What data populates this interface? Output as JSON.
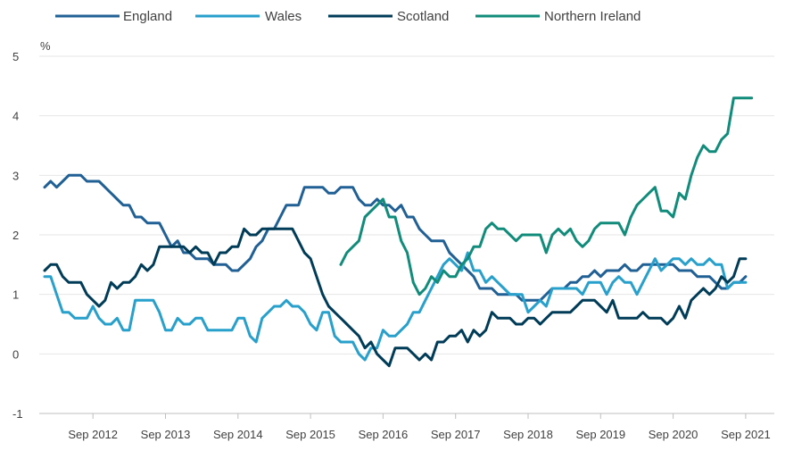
{
  "chart_data": {
    "type": "line",
    "title": "",
    "xlabel": "",
    "ylabel": "%",
    "ylim": [
      -1,
      5
    ],
    "yticks": [
      -1,
      0,
      1,
      2,
      3,
      4,
      5
    ],
    "x_start": "Jan 2012",
    "x_end": "Dec 2021",
    "x_ticks": [
      {
        "label": "Sep 2012",
        "month_index": 8
      },
      {
        "label": "Sep 2013",
        "month_index": 20
      },
      {
        "label": "Sep 2014",
        "month_index": 32
      },
      {
        "label": "Sep 2015",
        "month_index": 44
      },
      {
        "label": "Sep 2016",
        "month_index": 56
      },
      {
        "label": "Sep 2017",
        "month_index": 68
      },
      {
        "label": "Sep 2018",
        "month_index": 80
      },
      {
        "label": "Sep 2019",
        "month_index": 92
      },
      {
        "label": "Sep 2020",
        "month_index": 104
      },
      {
        "label": "Sep 2021",
        "month_index": 116
      }
    ],
    "legend_position": "top",
    "series": [
      {
        "name": "England",
        "color": "#206095",
        "start_month_index": 0,
        "values": [
          2.8,
          2.9,
          2.8,
          2.9,
          3.0,
          3.0,
          3.0,
          2.9,
          2.9,
          2.9,
          2.8,
          2.7,
          2.6,
          2.5,
          2.5,
          2.3,
          2.3,
          2.2,
          2.2,
          2.2,
          2.0,
          1.8,
          1.9,
          1.7,
          1.7,
          1.6,
          1.6,
          1.6,
          1.5,
          1.5,
          1.5,
          1.4,
          1.4,
          1.5,
          1.6,
          1.8,
          1.9,
          2.1,
          2.1,
          2.3,
          2.5,
          2.5,
          2.5,
          2.8,
          2.8,
          2.8,
          2.8,
          2.7,
          2.7,
          2.8,
          2.8,
          2.8,
          2.6,
          2.5,
          2.5,
          2.6,
          2.5,
          2.5,
          2.4,
          2.5,
          2.3,
          2.3,
          2.1,
          2.0,
          1.9,
          1.9,
          1.9,
          1.7,
          1.6,
          1.5,
          1.4,
          1.3,
          1.1,
          1.1,
          1.1,
          1.0,
          1.0,
          1.0,
          1.0,
          0.9,
          0.9,
          0.9,
          0.9,
          1.0,
          1.1,
          1.1,
          1.1,
          1.2,
          1.2,
          1.3,
          1.3,
          1.4,
          1.3,
          1.4,
          1.4,
          1.4,
          1.5,
          1.4,
          1.4,
          1.5,
          1.5,
          1.5,
          1.5,
          1.5,
          1.5,
          1.4,
          1.4,
          1.4,
          1.3,
          1.3,
          1.3,
          1.2,
          1.1,
          1.1,
          1.2,
          1.2,
          1.3
        ]
      },
      {
        "name": "Wales",
        "color": "#27a0cc",
        "start_month_index": 0,
        "values": [
          1.3,
          1.3,
          1.0,
          0.7,
          0.7,
          0.6,
          0.6,
          0.6,
          0.8,
          0.6,
          0.5,
          0.5,
          0.6,
          0.4,
          0.4,
          0.9,
          0.9,
          0.9,
          0.9,
          0.7,
          0.4,
          0.4,
          0.6,
          0.5,
          0.5,
          0.6,
          0.6,
          0.4,
          0.4,
          0.4,
          0.4,
          0.4,
          0.6,
          0.6,
          0.3,
          0.2,
          0.6,
          0.7,
          0.8,
          0.8,
          0.9,
          0.8,
          0.8,
          0.7,
          0.5,
          0.4,
          0.7,
          0.7,
          0.3,
          0.2,
          0.2,
          0.2,
          0.0,
          -0.1,
          0.1,
          0.1,
          0.4,
          0.3,
          0.3,
          0.4,
          0.5,
          0.7,
          0.7,
          0.9,
          1.1,
          1.3,
          1.5,
          1.6,
          1.5,
          1.4,
          1.7,
          1.4,
          1.4,
          1.2,
          1.3,
          1.2,
          1.1,
          1.0,
          1.0,
          1.0,
          0.7,
          0.8,
          0.9,
          0.8,
          1.1,
          1.1,
          1.1,
          1.1,
          1.1,
          1.0,
          1.2,
          1.2,
          1.2,
          1.0,
          1.2,
          1.3,
          1.2,
          1.2,
          1.0,
          1.2,
          1.4,
          1.6,
          1.4,
          1.5,
          1.6,
          1.6,
          1.5,
          1.6,
          1.5,
          1.5,
          1.6,
          1.5,
          1.5,
          1.1,
          1.2,
          1.2,
          1.2
        ]
      },
      {
        "name": "Scotland",
        "color": "#003c57",
        "start_month_index": 0,
        "values": [
          1.4,
          1.5,
          1.5,
          1.3,
          1.2,
          1.2,
          1.2,
          1.0,
          0.9,
          0.8,
          0.9,
          1.2,
          1.1,
          1.2,
          1.2,
          1.3,
          1.5,
          1.4,
          1.5,
          1.8,
          1.8,
          1.8,
          1.8,
          1.8,
          1.7,
          1.8,
          1.7,
          1.7,
          1.5,
          1.7,
          1.7,
          1.8,
          1.8,
          2.1,
          2.0,
          2.0,
          2.1,
          2.1,
          2.1,
          2.1,
          2.1,
          2.1,
          1.9,
          1.7,
          1.6,
          1.3,
          1.0,
          0.8,
          0.7,
          0.6,
          0.5,
          0.4,
          0.3,
          0.1,
          0.2,
          0.0,
          -0.1,
          -0.2,
          0.1,
          0.1,
          0.1,
          0.0,
          -0.1,
          0.0,
          -0.1,
          0.2,
          0.2,
          0.3,
          0.3,
          0.4,
          0.2,
          0.4,
          0.3,
          0.4,
          0.7,
          0.6,
          0.6,
          0.6,
          0.5,
          0.5,
          0.6,
          0.6,
          0.5,
          0.6,
          0.7,
          0.7,
          0.7,
          0.7,
          0.8,
          0.9,
          0.9,
          0.9,
          0.8,
          0.7,
          0.9,
          0.6,
          0.6,
          0.6,
          0.6,
          0.7,
          0.6,
          0.6,
          0.6,
          0.5,
          0.6,
          0.8,
          0.6,
          0.9,
          1.0,
          1.1,
          1.0,
          1.1,
          1.3,
          1.2,
          1.3,
          1.6,
          1.6
        ]
      },
      {
        "name": "Northern Ireland",
        "color": "#118c7b",
        "start_month_index": 49,
        "values": [
          1.5,
          1.7,
          1.8,
          1.9,
          2.3,
          2.4,
          2.5,
          2.6,
          2.3,
          2.3,
          1.9,
          1.7,
          1.2,
          1.0,
          1.1,
          1.3,
          1.2,
          1.4,
          1.3,
          1.3,
          1.5,
          1.6,
          1.8,
          1.8,
          2.1,
          2.2,
          2.1,
          2.1,
          2.0,
          1.9,
          2.0,
          2.0,
          2.0,
          2.0,
          1.7,
          2.0,
          2.1,
          2.0,
          2.1,
          1.9,
          1.8,
          1.9,
          2.1,
          2.2,
          2.2,
          2.2,
          2.2,
          2.0,
          2.3,
          2.5,
          2.6,
          2.7,
          2.8,
          2.4,
          2.4,
          2.3,
          2.7,
          2.6,
          3.0,
          3.3,
          3.5,
          3.4,
          3.4,
          3.6,
          3.7,
          4.3,
          4.3,
          4.3,
          4.3
        ]
      }
    ]
  }
}
